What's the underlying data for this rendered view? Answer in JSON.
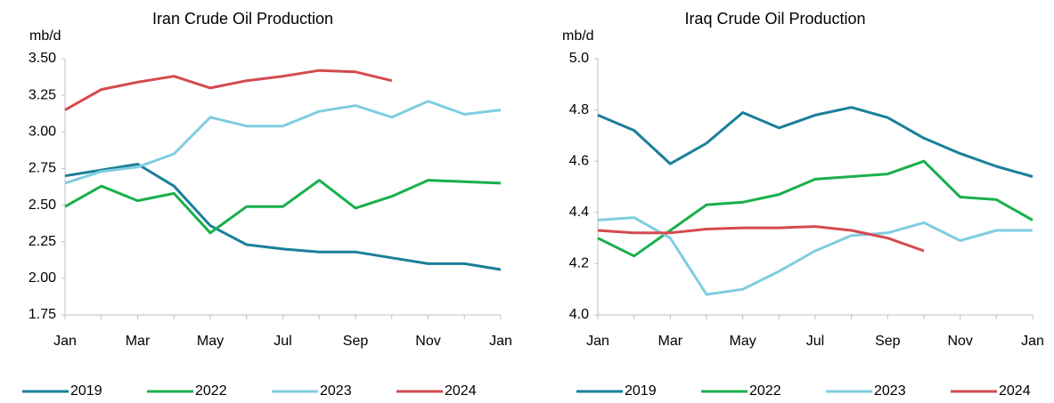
{
  "chart_data": [
    {
      "type": "line",
      "title": "Iran Crude Oil Production",
      "ylabel": "mb/d",
      "categories": [
        "Jan",
        null,
        "Mar",
        null,
        "May",
        null,
        "Jul",
        null,
        "Sep",
        null,
        "Nov",
        null,
        "Jan"
      ],
      "ylim": [
        1.75,
        3.5
      ],
      "yticks": [
        1.75,
        {
          "value": 2,
          "label": "2.00"
        },
        2.25,
        {
          "value": 2.5,
          "label": "2.50"
        },
        2.75,
        {
          "value": 3,
          "label": "3.00"
        },
        3.25,
        {
          "value": 3.5,
          "label": "3.50"
        }
      ],
      "grid": false,
      "legend": "bottom",
      "series": [
        {
          "name": "2019",
          "color": "#1a7f99",
          "values": [
            2.7,
            2.74,
            2.78,
            2.63,
            2.36,
            2.23,
            2.2,
            2.18,
            2.18,
            2.14,
            2.1,
            2.1,
            2.06
          ]
        },
        {
          "name": "2022",
          "color": "#18b04a",
          "values": [
            2.49,
            2.63,
            2.53,
            2.58,
            2.31,
            2.49,
            2.49,
            2.67,
            2.48,
            2.56,
            2.67,
            2.66,
            2.65
          ]
        },
        {
          "name": "2023",
          "color": "#7fcde0",
          "values": [
            2.65,
            2.73,
            2.76,
            2.85,
            3.1,
            3.04,
            3.04,
            3.14,
            3.18,
            3.1,
            3.21,
            3.12,
            3.15
          ]
        },
        {
          "name": "2024",
          "color": "#d44a4f",
          "values": [
            3.15,
            3.29,
            3.34,
            3.38,
            3.3,
            3.35,
            3.38,
            3.42,
            3.41,
            3.35,
            null,
            null,
            null
          ]
        }
      ]
    },
    {
      "type": "line",
      "title": "Iraq Crude Oil Production",
      "ylabel": "mb/d",
      "categories": [
        "Jan",
        null,
        "Mar",
        null,
        "May",
        null,
        "Jul",
        null,
        "Sep",
        null,
        "Nov",
        null,
        "Jan"
      ],
      "ylim": [
        4.0,
        5.0
      ],
      "yticks": [
        {
          "value": 4,
          "label": "4.0"
        },
        4.2,
        4.4,
        4.6,
        4.8,
        {
          "value": 5,
          "label": "5.0"
        }
      ],
      "grid": false,
      "legend": "bottom",
      "series": [
        {
          "name": "2019",
          "color": "#1a7f99",
          "values": [
            4.78,
            4.72,
            4.59,
            4.67,
            4.79,
            4.73,
            4.78,
            4.81,
            4.77,
            4.69,
            4.63,
            4.58,
            4.54
          ]
        },
        {
          "name": "2022",
          "color": "#18b04a",
          "values": [
            4.3,
            4.23,
            4.33,
            4.43,
            4.44,
            4.47,
            4.53,
            4.54,
            4.55,
            4.6,
            4.46,
            4.45,
            4.37
          ]
        },
        {
          "name": "2023",
          "color": "#7fcde0",
          "values": [
            4.37,
            4.38,
            4.3,
            4.08,
            4.1,
            4.17,
            4.25,
            4.31,
            4.32,
            4.36,
            4.29,
            4.33,
            4.33
          ]
        },
        {
          "name": "2024",
          "color": "#d44a4f",
          "values": [
            4.33,
            4.32,
            4.32,
            4.335,
            4.34,
            4.34,
            4.345,
            4.33,
            4.3,
            4.25,
            null,
            null,
            null
          ]
        }
      ]
    }
  ]
}
